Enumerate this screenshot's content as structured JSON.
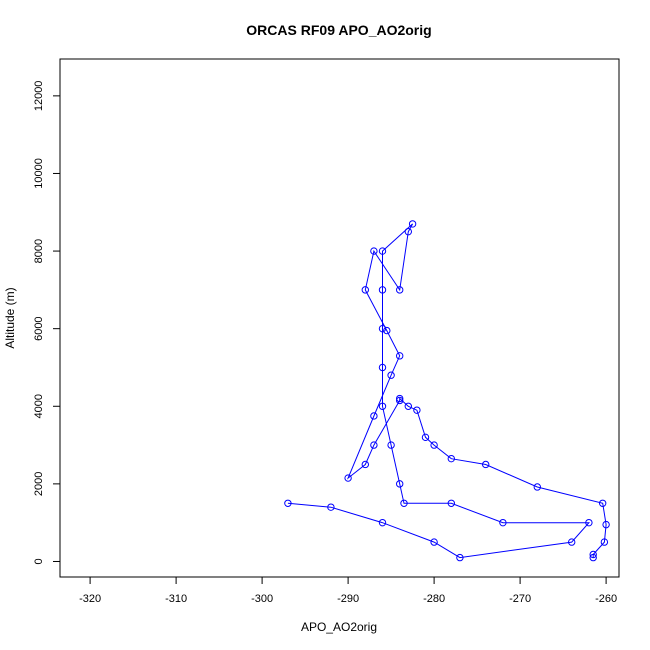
{
  "chart_data": {
    "type": "line",
    "title": "ORCAS RF09 APO_AO2orig",
    "xlabel": "APO_AO2orig",
    "ylabel": "Altitude (m)",
    "xlim": [
      -323.5,
      -258.5
    ],
    "ylim": [
      -400,
      12950
    ],
    "xticks": [
      -320,
      -310,
      -300,
      -290,
      -280,
      -270,
      -260
    ],
    "yticks": [
      0,
      2000,
      4000,
      6000,
      8000,
      10000,
      12000
    ],
    "grid": false,
    "markers": "open-circle",
    "color": "#0000ff",
    "series": [
      {
        "points": [
          [
            -261.5,
            100
          ],
          [
            -261.5,
            180
          ],
          [
            -260.2,
            500
          ],
          [
            -260,
            950
          ],
          [
            -260.4,
            1500
          ],
          [
            -268,
            1920
          ],
          [
            -274,
            2500
          ],
          [
            -278,
            2650
          ],
          [
            -280,
            3000
          ],
          [
            -281,
            3200
          ],
          [
            -282,
            3900
          ],
          [
            -283,
            4000
          ],
          [
            -284,
            4200
          ],
          [
            -284,
            4150
          ],
          [
            -287,
            3000
          ],
          [
            -288,
            2500
          ],
          [
            -290,
            2150
          ],
          [
            -287,
            3750
          ],
          [
            -285,
            4800
          ],
          [
            -284,
            5300
          ],
          [
            -285.5,
            5950
          ],
          [
            -288,
            7000
          ],
          [
            -287,
            8000
          ],
          [
            -284,
            7000
          ],
          [
            -283,
            8500
          ],
          [
            -282.5,
            8700
          ],
          [
            -286,
            8000
          ],
          [
            -286,
            7000
          ],
          [
            -286,
            6000
          ],
          [
            -286,
            5000
          ],
          [
            -286,
            4000
          ],
          [
            -285,
            3000
          ],
          [
            -284,
            2000
          ],
          [
            -283.5,
            1500
          ],
          [
            -278,
            1500
          ],
          [
            -272,
            1000
          ],
          [
            -262,
            1000
          ],
          [
            -264,
            500
          ],
          [
            -277,
            100
          ],
          [
            -280,
            500
          ],
          [
            -286,
            1000
          ],
          [
            -292,
            1400
          ],
          [
            -297,
            1500
          ]
        ]
      }
    ]
  }
}
